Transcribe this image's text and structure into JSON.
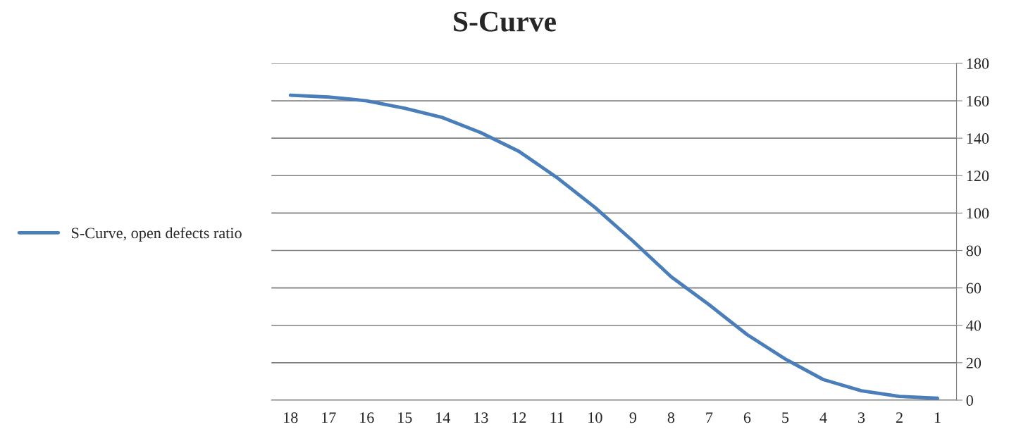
{
  "chart_data": {
    "type": "line",
    "title": "S-Curve",
    "categories": [
      "18",
      "17",
      "16",
      "15",
      "14",
      "13",
      "12",
      "11",
      "10",
      "9",
      "8",
      "7",
      "6",
      "5",
      "4",
      "3",
      "2",
      "1"
    ],
    "series": [
      {
        "name": "S-Curve, open defects ratio",
        "color": "#4a7ebb",
        "values": [
          163,
          162,
          160,
          156,
          151,
          143,
          133,
          119,
          103,
          85,
          66,
          51,
          35,
          22,
          11,
          5,
          2,
          1
        ]
      }
    ],
    "ylim": [
      0,
      180
    ],
    "yticks": [
      0,
      20,
      40,
      60,
      80,
      100,
      120,
      140,
      160,
      180
    ],
    "grid": "y",
    "legend": "left",
    "marker": "none",
    "line_style": "solid"
  }
}
